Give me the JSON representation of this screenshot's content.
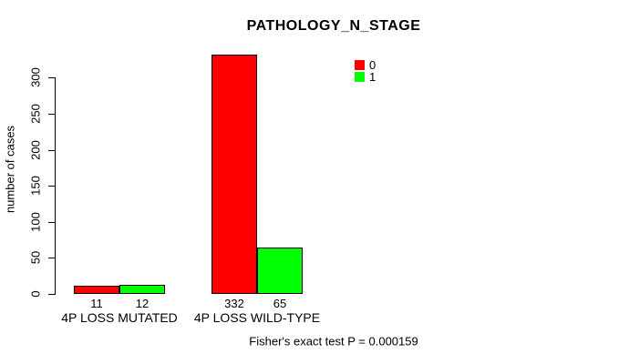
{
  "chart_data": {
    "type": "bar",
    "title": "PATHOLOGY_N_STAGE",
    "xlabel": "",
    "ylabel": "number of cases",
    "categories": [
      "4P LOSS MUTATED",
      "4P LOSS WILD-TYPE"
    ],
    "series": [
      {
        "name": "0",
        "color": "#FF0000",
        "values": [
          11,
          332
        ]
      },
      {
        "name": "1",
        "color": "#00FF00",
        "values": [
          12,
          65
        ]
      }
    ],
    "bar_value_labels": [
      [
        "11",
        "332"
      ],
      [
        "12",
        "65"
      ]
    ],
    "yticks": [
      0,
      50,
      100,
      150,
      200,
      250,
      300
    ],
    "ylim": [
      0,
      340
    ],
    "grid": false,
    "legend_position": "top-right",
    "footnote": "Fisher's exact test P = 0.000159"
  }
}
